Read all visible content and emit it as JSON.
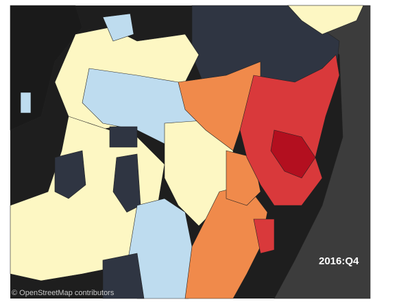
{
  "map": {
    "label": "2016:Q4",
    "attribution": "© OpenStreetMap contributors"
  }
}
